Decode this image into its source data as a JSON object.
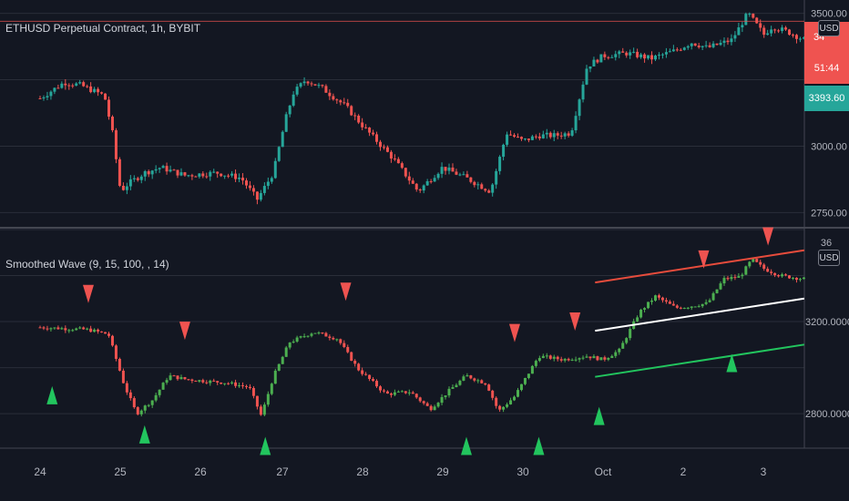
{
  "top_legend": "ETHUSD Perpetual Contract, 1h, BYBIT",
  "bottom_legend": "Smoothed Wave (9, 15, 100, , 14)",
  "currency_label": "USD",
  "price_tags": {
    "last_price_partial": "34",
    "countdown": "51:44",
    "marker_price": "3393.60"
  },
  "colors": {
    "background": "#131722",
    "bull": "#26a69a",
    "bear": "#ef5350",
    "green_bright": "#22c55e",
    "red_line": "#e74c3c",
    "white_line": "#ffffff",
    "grid": "#2a2e39"
  },
  "chart_data": [
    {
      "type": "line",
      "name": "price-panel",
      "title": "ETHUSD Perpetual Contract, 1h, BYBIT",
      "y_ticks": [
        "3500.00",
        "3000.00",
        "2750.00"
      ],
      "ylim": [
        2700,
        3550
      ],
      "x_ticks": [
        "24",
        "25",
        "26",
        "27",
        "28",
        "29",
        "30",
        "Oct",
        "2",
        "3"
      ],
      "series": [
        {
          "x": [
            0,
            0.3,
            0.5,
            0.8,
            0.9,
            1.0,
            1.1,
            1.3,
            1.5,
            1.8,
            2.2,
            2.5,
            2.7,
            2.9,
            3.05,
            3.15,
            3.3,
            3.5,
            3.8,
            4.0,
            4.4,
            4.7,
            5.0,
            5.3,
            5.6,
            5.8,
            6.0,
            6.2,
            6.4,
            6.6,
            6.8,
            7.0,
            7.3,
            7.6,
            7.9,
            8.1,
            8.3,
            8.6,
            8.8,
            8.9,
            9.0,
            9.1,
            9.3,
            9.5
          ],
          "values": [
            3180,
            3240,
            3230,
            3190,
            3050,
            2830,
            2860,
            2900,
            2920,
            2890,
            2900,
            2880,
            2800,
            2900,
            3100,
            3200,
            3250,
            3220,
            3150,
            3080,
            2950,
            2830,
            2920,
            2880,
            2830,
            3050,
            3020,
            3040,
            3040,
            3050,
            3300,
            3340,
            3350,
            3330,
            3360,
            3390,
            3370,
            3400,
            3500,
            3460,
            3420,
            3450,
            3430,
            3400
          ]
        }
      ]
    },
    {
      "type": "line",
      "name": "smoothed-wave-panel",
      "title": "Smoothed Wave (9, 15, 100, , 14)",
      "y_ticks": [
        "3200.0000",
        "2800.0000"
      ],
      "ylim": [
        2650,
        3600
      ],
      "series": [
        {
          "name": "Smoothed Wave",
          "x": [
            0,
            0.3,
            0.6,
            0.85,
            1.05,
            1.2,
            1.4,
            1.6,
            1.8,
            2.1,
            2.3,
            2.6,
            2.75,
            2.9,
            3.1,
            3.4,
            3.7,
            3.95,
            4.3,
            4.6,
            4.85,
            5.1,
            5.3,
            5.55,
            5.7,
            5.9,
            6.2,
            6.5,
            6.8,
            7.0,
            7.2,
            7.45,
            7.65,
            7.9,
            8.05,
            8.3,
            8.5,
            8.7,
            8.85,
            9.0,
            9.2,
            9.5
          ],
          "values": [
            3175,
            3170,
            3165,
            3145,
            2920,
            2800,
            2860,
            2965,
            2950,
            2940,
            2935,
            2915,
            2790,
            2960,
            3110,
            3155,
            3125,
            2995,
            2885,
            2895,
            2820,
            2905,
            2965,
            2930,
            2810,
            2875,
            3050,
            3035,
            3050,
            3035,
            3075,
            3240,
            3310,
            3260,
            3265,
            3280,
            3385,
            3395,
            3470,
            3430,
            3400,
            3385
          ]
        }
      ],
      "trend_lines": [
        {
          "color": "red",
          "start": [
            6.9,
            3370
          ],
          "end": [
            9.5,
            3510
          ]
        },
        {
          "color": "white",
          "start": [
            6.9,
            3160
          ],
          "end": [
            9.5,
            3300
          ]
        },
        {
          "color": "green",
          "start": [
            6.9,
            2960
          ],
          "end": [
            9.5,
            3100
          ]
        }
      ],
      "sell_signals": [
        [
          0.6,
          3320
        ],
        [
          1.8,
          3160
        ],
        [
          3.8,
          3330
        ],
        [
          5.9,
          3150
        ],
        [
          6.65,
          3200
        ],
        [
          8.25,
          3470
        ],
        [
          9.05,
          3570
        ]
      ],
      "buy_signals": [
        [
          0.15,
          2880
        ],
        [
          1.3,
          2710
        ],
        [
          2.8,
          2660
        ],
        [
          5.3,
          2660
        ],
        [
          6.2,
          2660
        ],
        [
          6.95,
          2790
        ],
        [
          8.6,
          3020
        ]
      ]
    }
  ]
}
